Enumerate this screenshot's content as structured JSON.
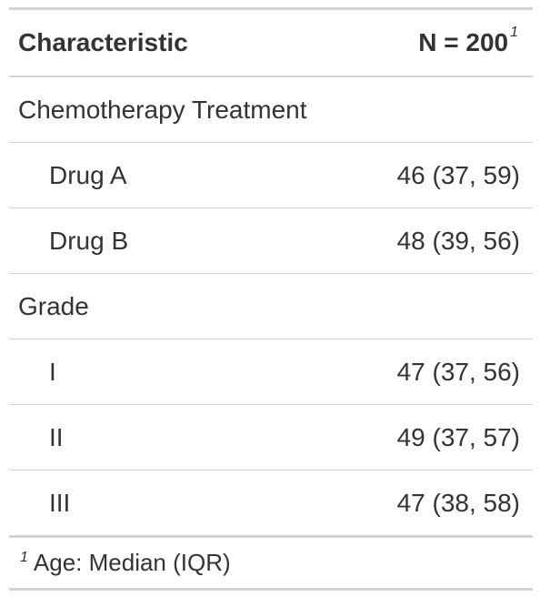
{
  "table": {
    "header": {
      "characteristic": "Characteristic",
      "n_label": "N = 200",
      "n_footnote_marker": "1"
    },
    "rows": [
      {
        "label": "Chemotherapy Treatment",
        "value": "",
        "type": "group"
      },
      {
        "label": "Drug A",
        "value": "46 (37, 59)",
        "type": "level"
      },
      {
        "label": "Drug B",
        "value": "48 (39, 56)",
        "type": "level"
      },
      {
        "label": "Grade",
        "value": "",
        "type": "group"
      },
      {
        "label": "I",
        "value": "47 (37, 56)",
        "type": "level"
      },
      {
        "label": "II",
        "value": "49 (37, 57)",
        "type": "level"
      },
      {
        "label": "III",
        "value": "47 (38, 58)",
        "type": "level"
      }
    ],
    "footnote": {
      "marker": "1",
      "text": "Age: Median (IQR)"
    }
  }
}
